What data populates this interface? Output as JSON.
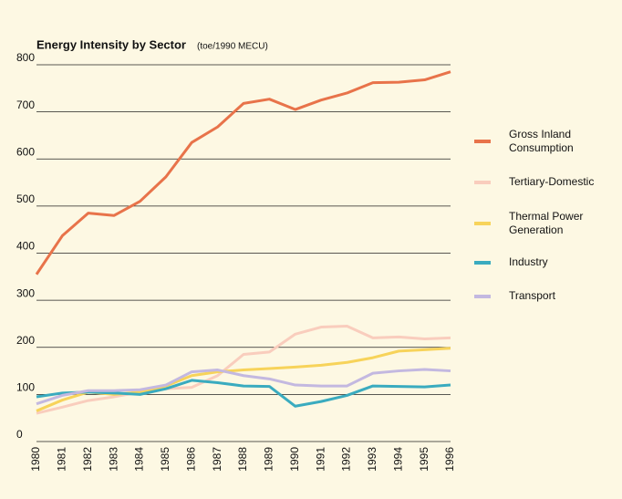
{
  "chart_data": {
    "type": "line",
    "title": "Energy Intensity by Sector",
    "subtitle": "(toe/1990 MECU)",
    "categories": [
      "1980",
      "1981",
      "1982",
      "1983",
      "1984",
      "1985",
      "1986",
      "1987",
      "1988",
      "1989",
      "1990",
      "1991",
      "1992",
      "1993",
      "1994",
      "1995",
      "1996"
    ],
    "series": [
      {
        "name": "Gross Inland Consumption",
        "color": "#e8734a",
        "values": [
          355,
          437,
          485,
          480,
          510,
          562,
          635,
          668,
          718,
          727,
          705,
          725,
          740,
          762,
          763,
          768,
          785
        ]
      },
      {
        "name": "Tertiary-Domestic",
        "color": "#f9cdbd",
        "values": [
          60,
          73,
          87,
          95,
          105,
          112,
          115,
          140,
          185,
          190,
          228,
          243,
          245,
          220,
          222,
          218,
          220
        ]
      },
      {
        "name": "Thermal Power Generation",
        "color": "#f7d35a",
        "values": [
          65,
          88,
          105,
          100,
          105,
          118,
          140,
          148,
          152,
          155,
          158,
          162,
          168,
          178,
          192,
          195,
          198
        ]
      },
      {
        "name": "Industry",
        "color": "#3aabbf",
        "values": [
          95,
          103,
          105,
          103,
          100,
          112,
          130,
          125,
          118,
          117,
          75,
          85,
          98,
          118,
          117,
          116,
          120
        ]
      },
      {
        "name": "Transport",
        "color": "#c3b8e0",
        "values": [
          80,
          98,
          108,
          108,
          110,
          120,
          148,
          152,
          140,
          133,
          120,
          118,
          118,
          145,
          150,
          153,
          150
        ]
      }
    ],
    "ylim": [
      0,
      800
    ],
    "yticks": [
      0,
      100,
      200,
      300,
      400,
      500,
      600,
      700,
      800
    ],
    "grid": true
  }
}
